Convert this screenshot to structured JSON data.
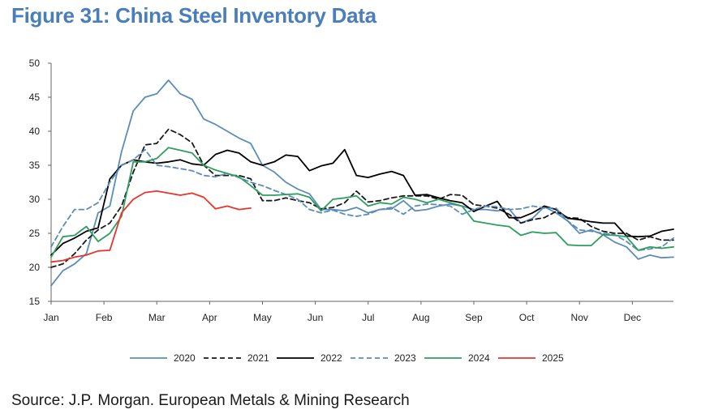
{
  "title": "Figure 31: China Steel Inventory Data",
  "source": "Source: J.P. Morgan. European Metals & Mining Research",
  "chart_data": {
    "type": "line",
    "title": "",
    "xlabel": "",
    "ylabel": "",
    "ylim": [
      15,
      50
    ],
    "yticks": [
      "15",
      "20",
      "25",
      "30",
      "35",
      "40",
      "45",
      "50"
    ],
    "xlim": [
      0,
      53
    ],
    "xtick_labels": [
      "Jan",
      "Feb",
      "Mar",
      "Apr",
      "May",
      "Jun",
      "Jul",
      "Aug",
      "Sep",
      "Oct",
      "Nov",
      "Dec"
    ],
    "xtick_weeks": [
      0,
      4.5,
      9,
      13.5,
      18,
      22.5,
      27,
      31.5,
      36,
      40.5,
      45,
      49.5
    ],
    "grid": false,
    "legend_position": "bottom",
    "series": [
      {
        "name": "2020",
        "color": "#5b8db8",
        "dash": "solid",
        "x": [
          0,
          1,
          2,
          3,
          4,
          5,
          6,
          7,
          8,
          9,
          10,
          11,
          12,
          13,
          14,
          15,
          16,
          17,
          18,
          19,
          20,
          21,
          22,
          23,
          24,
          25,
          26,
          27,
          28,
          29,
          30,
          31,
          32,
          33,
          34,
          35,
          36,
          37,
          38,
          39,
          40,
          41,
          42,
          43,
          44,
          45,
          46,
          47,
          48,
          49,
          50,
          51,
          52,
          53
        ],
        "values": [
          17.3,
          19.5,
          20.5,
          22.0,
          28.0,
          29.0,
          37.0,
          43.0,
          45.0,
          45.5,
          47.5,
          45.5,
          44.7,
          41.8,
          41.0,
          40.0,
          39.0,
          38.2,
          35.0,
          34.0,
          32.5,
          31.5,
          30.8,
          28.5,
          28.5,
          28.3,
          28.8,
          28.0,
          28.5,
          28.6,
          29.8,
          28.3,
          28.5,
          29.0,
          29.3,
          29.0,
          28.5,
          28.5,
          28.3,
          28.6,
          26.5,
          27.2,
          28.9,
          28.0,
          26.8,
          25.0,
          25.5,
          24.8,
          23.7,
          23.0,
          21.2,
          21.8,
          21.4,
          21.5
        ]
      },
      {
        "name": "2021",
        "color": "#1a1a1a",
        "dash": "6,4",
        "x": [
          0,
          1,
          2,
          3,
          4,
          5,
          6,
          7,
          8,
          9,
          10,
          11,
          12,
          13,
          14,
          15,
          16,
          17,
          18,
          19,
          20,
          21,
          22,
          23,
          24,
          25,
          26,
          27,
          28,
          29,
          30,
          31,
          32,
          33,
          34,
          35,
          36,
          37,
          38,
          39,
          40,
          41,
          42,
          43,
          44,
          45,
          46,
          47,
          48,
          49,
          50,
          51,
          52,
          53
        ],
        "values": [
          20.0,
          20.5,
          22.0,
          24.0,
          25.5,
          26.5,
          29.0,
          34.0,
          38.0,
          38.2,
          40.3,
          39.5,
          38.3,
          35.0,
          33.5,
          33.5,
          33.5,
          33.0,
          29.8,
          29.8,
          30.2,
          29.8,
          29.5,
          28.6,
          28.8,
          29.5,
          31.2,
          29.6,
          29.8,
          30.2,
          30.5,
          30.5,
          30.5,
          30.0,
          30.7,
          30.6,
          29.2,
          29.0,
          28.7,
          27.8,
          26.5,
          27.0,
          27.3,
          28.2,
          27.3,
          27.2,
          26.0,
          25.3,
          25.0,
          25.0,
          24.0,
          24.5,
          24.0,
          24.0
        ]
      },
      {
        "name": "2022",
        "color": "#000000",
        "dash": "solid",
        "x": [
          0,
          1,
          2,
          3,
          4,
          5,
          6,
          7,
          8,
          9,
          10,
          11,
          12,
          13,
          14,
          15,
          16,
          17,
          18,
          19,
          20,
          21,
          22,
          23,
          24,
          25,
          26,
          27,
          28,
          29,
          30,
          31,
          32,
          33,
          34,
          35,
          36,
          37,
          38,
          39,
          40,
          41,
          42,
          43,
          44,
          45,
          46,
          47,
          48,
          49,
          50,
          51,
          52,
          53
        ],
        "values": [
          21.8,
          23.5,
          24.3,
          25.3,
          25.8,
          33.0,
          35.0,
          35.8,
          35.5,
          35.3,
          35.5,
          35.8,
          35.2,
          35.0,
          36.6,
          37.2,
          36.8,
          35.5,
          35.0,
          35.5,
          36.5,
          36.3,
          34.2,
          34.9,
          35.3,
          37.3,
          33.5,
          33.2,
          33.7,
          34.1,
          33.5,
          30.6,
          30.7,
          30.2,
          29.8,
          29.5,
          28.2,
          29.0,
          29.7,
          27.3,
          27.3,
          28.0,
          29.0,
          28.5,
          27.2,
          27.0,
          26.7,
          26.5,
          26.5,
          24.6,
          24.5,
          24.6,
          25.3,
          25.6
        ]
      },
      {
        "name": "2023",
        "color": "#5b8db8",
        "dash": "6,4",
        "x": [
          0,
          1,
          2,
          3,
          4,
          5,
          6,
          7,
          8,
          9,
          10,
          11,
          12,
          13,
          14,
          15,
          16,
          17,
          18,
          19,
          20,
          21,
          22,
          23,
          24,
          25,
          26,
          27,
          28,
          29,
          30,
          31,
          32,
          33,
          34,
          35,
          36,
          37,
          38,
          39,
          40,
          41,
          42,
          43,
          44,
          45,
          46,
          47,
          48,
          49,
          50,
          51,
          52,
          53
        ],
        "values": [
          23.0,
          26.0,
          28.5,
          28.5,
          29.5,
          32.5,
          35.0,
          35.8,
          37.3,
          35.0,
          34.8,
          34.5,
          34.2,
          33.5,
          33.3,
          33.8,
          33.2,
          32.5,
          32.0,
          31.3,
          30.7,
          30.0,
          28.5,
          28.0,
          28.4,
          27.8,
          27.5,
          27.8,
          28.5,
          28.8,
          27.8,
          29.0,
          29.3,
          29.2,
          29.0,
          27.8,
          28.5,
          29.0,
          28.9,
          28.5,
          28.6,
          29.0,
          28.7,
          28.7,
          26.8,
          25.5,
          25.3,
          25.0,
          24.8,
          23.8,
          22.5,
          22.7,
          23.0,
          24.3
        ]
      },
      {
        "name": "2024",
        "color": "#2e9e5e",
        "dash": "solid",
        "x": [
          0,
          1,
          2,
          3,
          4,
          5,
          6,
          7,
          8,
          9,
          10,
          11,
          12,
          13,
          14,
          15,
          16,
          17,
          18,
          19,
          20,
          21,
          22,
          23,
          24,
          25,
          26,
          27,
          28,
          29,
          30,
          31,
          32,
          33,
          34,
          35,
          36,
          37,
          38,
          39,
          40,
          41,
          42,
          43,
          44,
          45,
          46,
          47,
          48,
          49,
          50,
          51,
          52,
          53
        ],
        "values": [
          21.5,
          24.5,
          24.7,
          26.0,
          23.8,
          25.0,
          27.5,
          35.5,
          35.5,
          36.0,
          37.6,
          37.2,
          36.8,
          35.0,
          34.3,
          33.8,
          33.3,
          32.0,
          30.6,
          30.6,
          30.7,
          30.8,
          30.3,
          28.3,
          30.0,
          30.2,
          30.5,
          29.0,
          29.5,
          29.3,
          30.3,
          30.0,
          29.5,
          30.0,
          29.5,
          29.0,
          26.8,
          26.5,
          26.2,
          26.0,
          24.7,
          25.2,
          25.0,
          25.1,
          23.3,
          23.2,
          23.2,
          24.8,
          24.7,
          24.5,
          22.5,
          23.0,
          22.8,
          23.0
        ]
      },
      {
        "name": "2025",
        "color": "#e8352b",
        "dash": "solid",
        "x": [
          0,
          1,
          2,
          3,
          4,
          5,
          6,
          7,
          8,
          9,
          10,
          11,
          12,
          13,
          14,
          15,
          16,
          17
        ],
        "values": [
          20.8,
          21.0,
          21.5,
          21.8,
          22.4,
          22.5,
          28.0,
          30.0,
          31.0,
          31.2,
          30.9,
          30.6,
          30.9,
          30.3,
          28.6,
          29.0,
          28.5,
          28.7
        ]
      }
    ]
  }
}
